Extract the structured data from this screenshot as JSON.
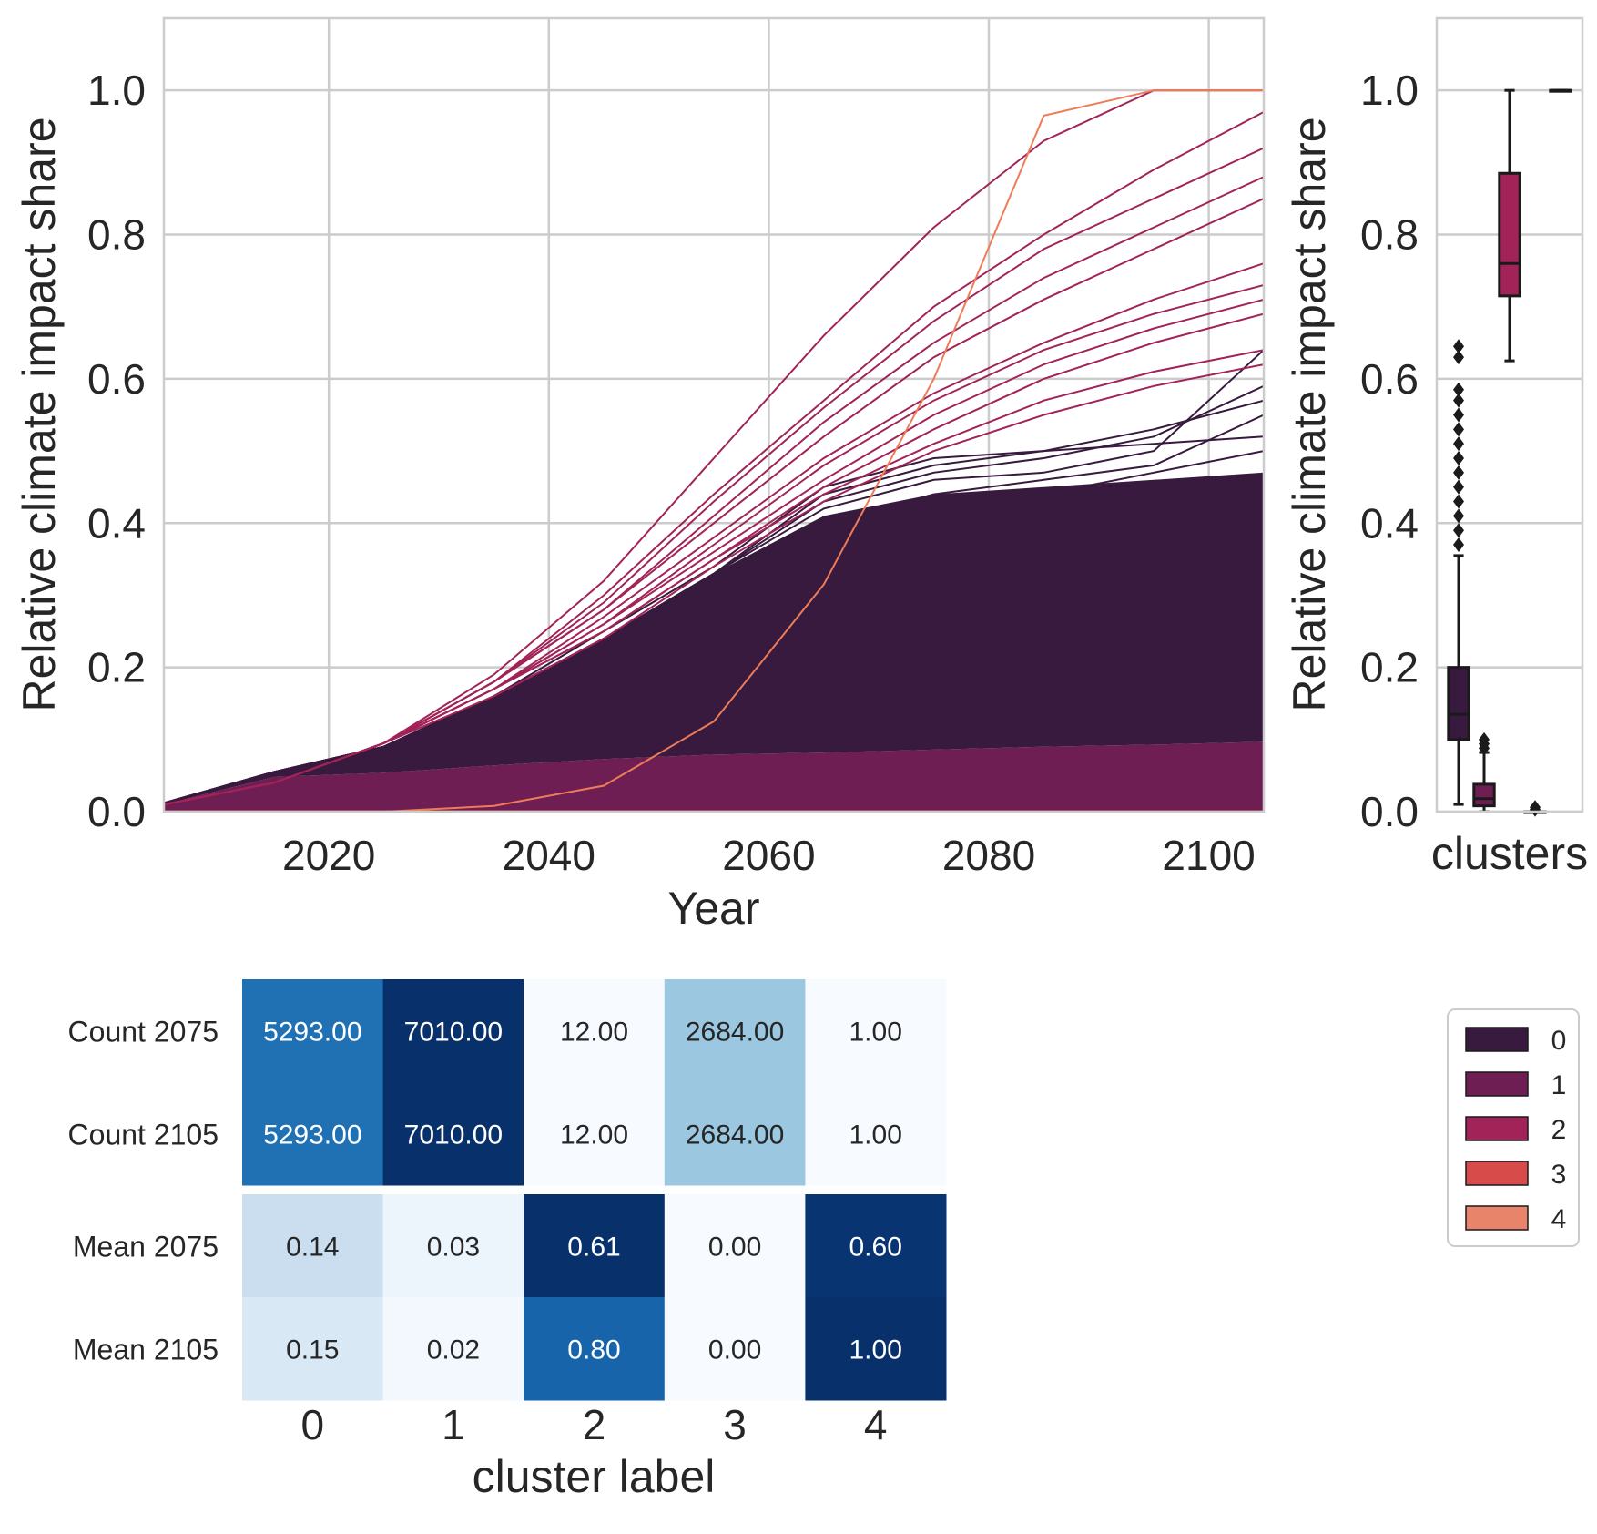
{
  "colors": {
    "cluster_0": "#371a3e",
    "cluster_1": "#6e1e52",
    "cluster_2": "#a12358",
    "cluster_3": "#d84b4b",
    "cluster_4": "#ee7c58",
    "grid": "#cccccc",
    "heatmap_scale": [
      "#f7fbff",
      "#deebf7",
      "#c6dbef",
      "#9ecae1",
      "#6baed6",
      "#4292c6",
      "#2171b5",
      "#08519c",
      "#08306b"
    ]
  },
  "chart_data": [
    {
      "type": "line",
      "xlabel": "Year",
      "ylabel": "Relative climate impact share",
      "xlim": [
        2005,
        2105
      ],
      "ylim": [
        0,
        1.1
      ],
      "x_ticks": [
        "2020",
        "2040",
        "2060",
        "2080",
        "2100"
      ],
      "y_ticks": [
        "0.0",
        "0.2",
        "0.4",
        "0.6",
        "0.8",
        "1.0"
      ],
      "grid": true,
      "x": [
        2005,
        2015,
        2025,
        2035,
        2045,
        2055,
        2065,
        2075,
        2085,
        2095,
        2105
      ],
      "bands": [
        {
          "cluster": "1",
          "lower": [
            0,
            0,
            0,
            0,
            0,
            0,
            0,
            0,
            0,
            0,
            0
          ],
          "upper": [
            0.01,
            0.048,
            0.054,
            0.064,
            0.073,
            0.079,
            0.082,
            0.086,
            0.09,
            0.093,
            0.097
          ]
        },
        {
          "cluster": "0",
          "lower": [
            0.01,
            0.048,
            0.054,
            0.064,
            0.073,
            0.079,
            0.082,
            0.086,
            0.09,
            0.093,
            0.097
          ],
          "upper": [
            0.012,
            0.055,
            0.09,
            0.16,
            0.24,
            0.33,
            0.41,
            0.44,
            0.45,
            0.46,
            0.47
          ]
        }
      ],
      "series": [
        {
          "cluster": "0",
          "values": [
            0.012,
            0.055,
            0.09,
            0.16,
            0.25,
            0.34,
            0.45,
            0.49,
            0.5,
            0.51,
            0.52
          ]
        },
        {
          "cluster": "0",
          "values": [
            0.012,
            0.055,
            0.09,
            0.16,
            0.24,
            0.33,
            0.43,
            0.47,
            0.49,
            0.52,
            0.59
          ]
        },
        {
          "cluster": "0",
          "values": [
            0.012,
            0.055,
            0.09,
            0.16,
            0.24,
            0.33,
            0.42,
            0.46,
            0.47,
            0.5,
            0.64
          ]
        },
        {
          "cluster": "0",
          "values": [
            0.012,
            0.055,
            0.09,
            0.16,
            0.24,
            0.33,
            0.4,
            0.44,
            0.46,
            0.48,
            0.55
          ]
        },
        {
          "cluster": "0",
          "values": [
            0.012,
            0.055,
            0.09,
            0.16,
            0.24,
            0.32,
            0.39,
            0.42,
            0.44,
            0.47,
            0.5
          ]
        },
        {
          "cluster": "0",
          "values": [
            0.012,
            0.055,
            0.09,
            0.16,
            0.24,
            0.33,
            0.44,
            0.48,
            0.5,
            0.53,
            0.57
          ]
        },
        {
          "cluster": "0",
          "values": [
            0.012,
            0.055,
            0.09,
            0.16,
            0.24,
            0.32,
            0.38,
            0.41,
            0.43,
            0.44,
            0.46
          ]
        },
        {
          "cluster": "2",
          "values": [
            0.01,
            0.04,
            0.095,
            0.19,
            0.32,
            0.49,
            0.66,
            0.81,
            0.93,
            1.0,
            1.0
          ]
        },
        {
          "cluster": "2",
          "values": [
            0.01,
            0.04,
            0.095,
            0.18,
            0.3,
            0.44,
            0.57,
            0.7,
            0.8,
            0.89,
            0.97
          ]
        },
        {
          "cluster": "2",
          "values": [
            0.01,
            0.04,
            0.095,
            0.18,
            0.29,
            0.43,
            0.56,
            0.68,
            0.78,
            0.85,
            0.92
          ]
        },
        {
          "cluster": "2",
          "values": [
            0.01,
            0.04,
            0.095,
            0.18,
            0.28,
            0.41,
            0.54,
            0.65,
            0.74,
            0.81,
            0.88
          ]
        },
        {
          "cluster": "2",
          "values": [
            0.01,
            0.04,
            0.095,
            0.18,
            0.28,
            0.4,
            0.52,
            0.63,
            0.71,
            0.78,
            0.85
          ]
        },
        {
          "cluster": "2",
          "values": [
            0.01,
            0.04,
            0.095,
            0.17,
            0.27,
            0.38,
            0.49,
            0.58,
            0.65,
            0.71,
            0.76
          ]
        },
        {
          "cluster": "2",
          "values": [
            0.01,
            0.04,
            0.095,
            0.17,
            0.26,
            0.37,
            0.48,
            0.57,
            0.64,
            0.69,
            0.73
          ]
        },
        {
          "cluster": "2",
          "values": [
            0.01,
            0.04,
            0.095,
            0.17,
            0.26,
            0.36,
            0.46,
            0.55,
            0.62,
            0.67,
            0.71
          ]
        },
        {
          "cluster": "2",
          "values": [
            0.01,
            0.04,
            0.095,
            0.17,
            0.25,
            0.35,
            0.45,
            0.53,
            0.6,
            0.65,
            0.69
          ]
        },
        {
          "cluster": "2",
          "values": [
            0.01,
            0.04,
            0.095,
            0.17,
            0.25,
            0.35,
            0.44,
            0.51,
            0.57,
            0.61,
            0.64
          ]
        },
        {
          "cluster": "2",
          "values": [
            0.01,
            0.04,
            0.095,
            0.16,
            0.24,
            0.34,
            0.43,
            0.5,
            0.55,
            0.59,
            0.62
          ]
        },
        {
          "cluster": "3",
          "values": [
            0,
            0,
            0,
            0,
            0,
            0,
            0,
            0,
            0,
            0,
            0
          ]
        },
        {
          "cluster": "4",
          "values": [
            0.0,
            0.0,
            0.0,
            0.008,
            0.036,
            0.125,
            0.315,
            0.6,
            0.965,
            1.0,
            1.0
          ]
        }
      ]
    },
    {
      "type": "box",
      "xlabel": "clusters",
      "ylabel": "Relative climate impact share",
      "ylim": [
        0,
        1.1
      ],
      "y_ticks": [
        "0.0",
        "0.2",
        "0.4",
        "0.6",
        "0.8",
        "1.0"
      ],
      "boxes": [
        {
          "cluster": "0",
          "whislo": 0.01,
          "q1": 0.1,
          "med": 0.135,
          "q3": 0.2,
          "whishi": 0.355,
          "fliers": [
            0.37,
            0.39,
            0.41,
            0.43,
            0.45,
            0.47,
            0.49,
            0.51,
            0.53,
            0.55,
            0.57,
            0.585,
            0.63,
            0.645
          ]
        },
        {
          "cluster": "1",
          "whislo": 0.0,
          "q1": 0.008,
          "med": 0.018,
          "q3": 0.038,
          "whishi": 0.082,
          "fliers": [
            0.088,
            0.094,
            0.1
          ]
        },
        {
          "cluster": "2",
          "whislo": 0.625,
          "q1": 0.715,
          "med": 0.76,
          "q3": 0.885,
          "whishi": 1.0,
          "fliers": []
        },
        {
          "cluster": "3",
          "whislo": 0.0,
          "q1": 0.0,
          "med": 0.0,
          "q3": 0.0,
          "whishi": 0.0,
          "fliers": [
            0.003,
            0.006
          ]
        },
        {
          "cluster": "4",
          "whislo": 1.0,
          "q1": 1.0,
          "med": 1.0,
          "q3": 1.0,
          "whishi": 1.0,
          "fliers": []
        }
      ]
    },
    {
      "type": "heatmap",
      "xlabel": "cluster label",
      "columns": [
        "0",
        "1",
        "2",
        "3",
        "4"
      ],
      "rows": [
        "Count 2075",
        "Count 2105",
        "Mean 2075",
        "Mean 2105"
      ],
      "values": [
        [
          5293.0,
          7010.0,
          12.0,
          2684.0,
          1.0
        ],
        [
          5293.0,
          7010.0,
          12.0,
          2684.0,
          1.0
        ],
        [
          0.14,
          0.03,
          0.61,
          0.0,
          0.6
        ],
        [
          0.15,
          0.02,
          0.8,
          0.0,
          1.0
        ]
      ],
      "labels": [
        [
          "5293.00",
          "7010.00",
          "12.00",
          "2684.00",
          "1.00"
        ],
        [
          "5293.00",
          "7010.00",
          "12.00",
          "2684.00",
          "1.00"
        ],
        [
          "0.14",
          "0.03",
          "0.61",
          "0.00",
          "0.60"
        ],
        [
          "0.15",
          "0.02",
          "0.80",
          "0.00",
          "1.00"
        ]
      ]
    }
  ],
  "legend": {
    "placement": "right",
    "entries": [
      {
        "label": "0",
        "color": "#371a3e"
      },
      {
        "label": "1",
        "color": "#6e1e52"
      },
      {
        "label": "2",
        "color": "#a12358"
      },
      {
        "label": "3",
        "color": "#d84b4b"
      },
      {
        "label": "4",
        "color": "#e8846a"
      }
    ]
  }
}
